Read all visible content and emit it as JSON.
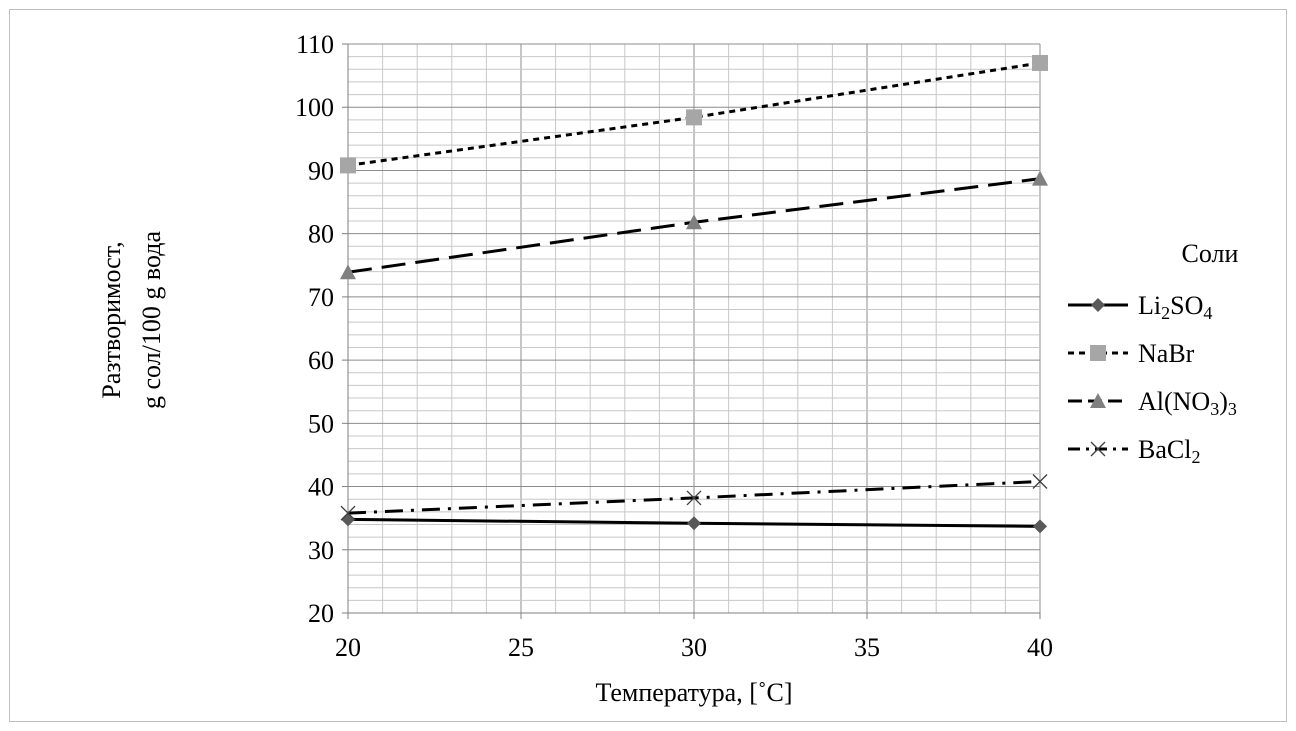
{
  "chart_data": {
    "type": "line",
    "xlabel": "Температура, [˚C]",
    "ylabel_lines": [
      "Разтворимост,",
      "g сол/100 g вода"
    ],
    "x": [
      20,
      30,
      40
    ],
    "xlim": [
      20,
      40
    ],
    "ylim": [
      20,
      110
    ],
    "x_ticks": [
      "20",
      "25",
      "30",
      "35",
      "40"
    ],
    "y_ticks": [
      "20",
      "30",
      "40",
      "50",
      "60",
      "70",
      "80",
      "90",
      "100",
      "110"
    ],
    "grid": true,
    "legend_title": "Соли",
    "legend_position": "right",
    "series": [
      {
        "name": "Li2SO4",
        "display": {
          "base": "Li",
          "sub1": "2",
          "mid": "SO",
          "sub2": "4",
          "tail": ""
        },
        "values": [
          34.8,
          34.2,
          33.7
        ],
        "color": "#000000",
        "marker_color": "#595959",
        "marker": "diamond",
        "dash": ""
      },
      {
        "name": "NaBr",
        "display": {
          "base": "NaBr",
          "sub1": "",
          "mid": "",
          "sub2": "",
          "tail": ""
        },
        "values": [
          90.8,
          98.4,
          107.0
        ],
        "color": "#000000",
        "marker_color": "#a6a6a6",
        "marker": "square",
        "dash": "6,5"
      },
      {
        "name": "Al(NO3)3",
        "display": {
          "base": "Al(NO",
          "sub1": "3",
          "mid": ")",
          "sub2": "3",
          "tail": ""
        },
        "values": [
          73.9,
          81.8,
          88.7
        ],
        "color": "#000000",
        "marker_color": "#808080",
        "marker": "triangle",
        "dash": "24,10"
      },
      {
        "name": "BaCl2",
        "display": {
          "base": "BaCl",
          "sub1": "2",
          "mid": "",
          "sub2": "",
          "tail": ""
        },
        "values": [
          35.8,
          38.2,
          40.8
        ],
        "color": "#000000",
        "marker_color": "#404040",
        "marker": "x",
        "dash": "18,8,3,8"
      }
    ]
  }
}
